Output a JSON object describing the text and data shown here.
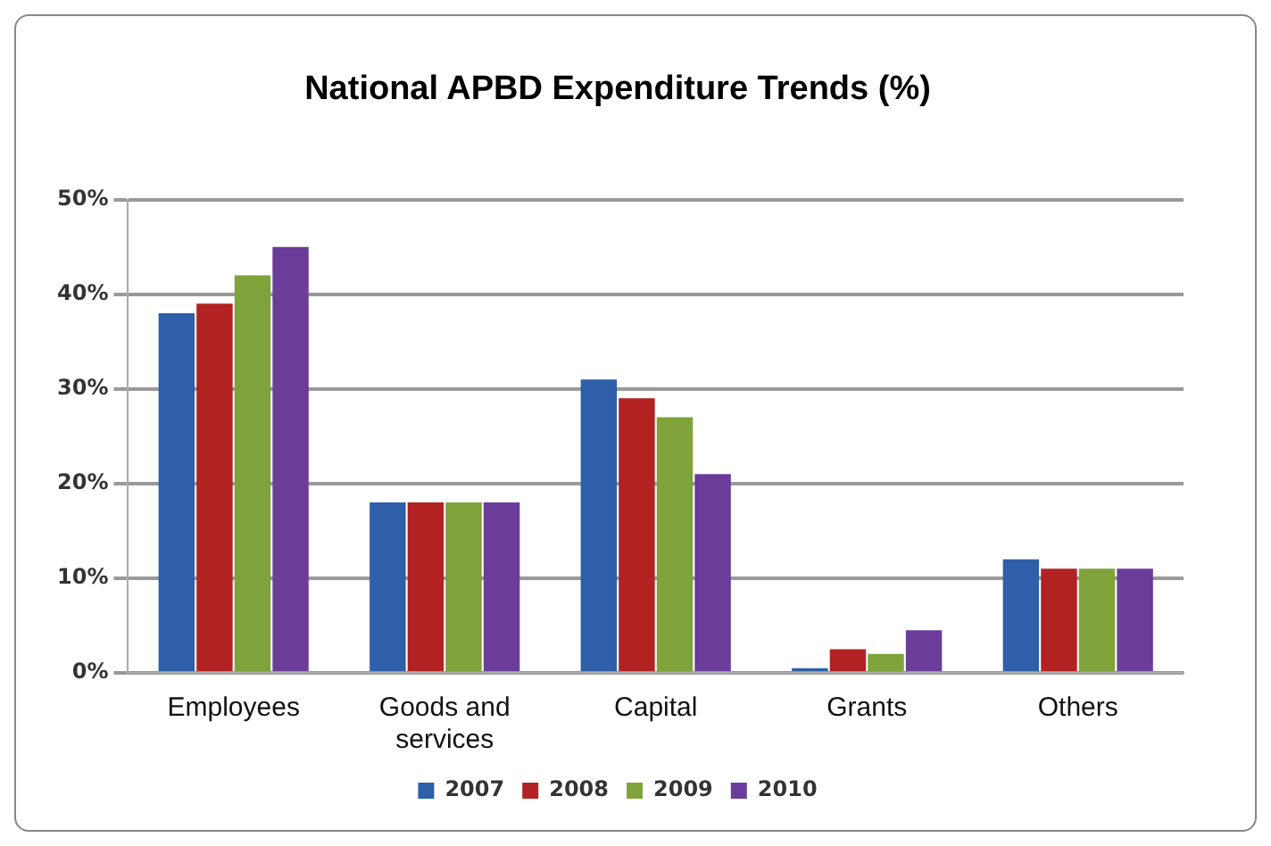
{
  "chart_data": {
    "type": "bar",
    "title": "National APBD Expenditure Trends (%)",
    "categories": [
      "Employees",
      "Goods and services",
      "Capital",
      "Grants",
      "Others"
    ],
    "series": [
      {
        "name": "2007",
        "color": "#2e5fa8",
        "values": [
          38,
          18,
          31,
          0.5,
          12
        ]
      },
      {
        "name": "2008",
        "color": "#b22222",
        "values": [
          39,
          18,
          29,
          2.5,
          11
        ]
      },
      {
        "name": "2009",
        "color": "#7fa33a",
        "values": [
          42,
          18,
          27,
          2,
          11
        ]
      },
      {
        "name": "2010",
        "color": "#6a3d9a",
        "values": [
          45,
          18,
          21,
          4.5,
          11
        ]
      }
    ],
    "ylim": [
      0,
      50
    ],
    "yticks": [
      {
        "value": 0,
        "label": "0%"
      },
      {
        "value": 10,
        "label": "10%"
      },
      {
        "value": 20,
        "label": "20%"
      },
      {
        "value": 30,
        "label": "30%"
      },
      {
        "value": 40,
        "label": "40%"
      },
      {
        "value": 50,
        "label": "50%"
      }
    ],
    "grid": "y",
    "legend": "bottom"
  }
}
